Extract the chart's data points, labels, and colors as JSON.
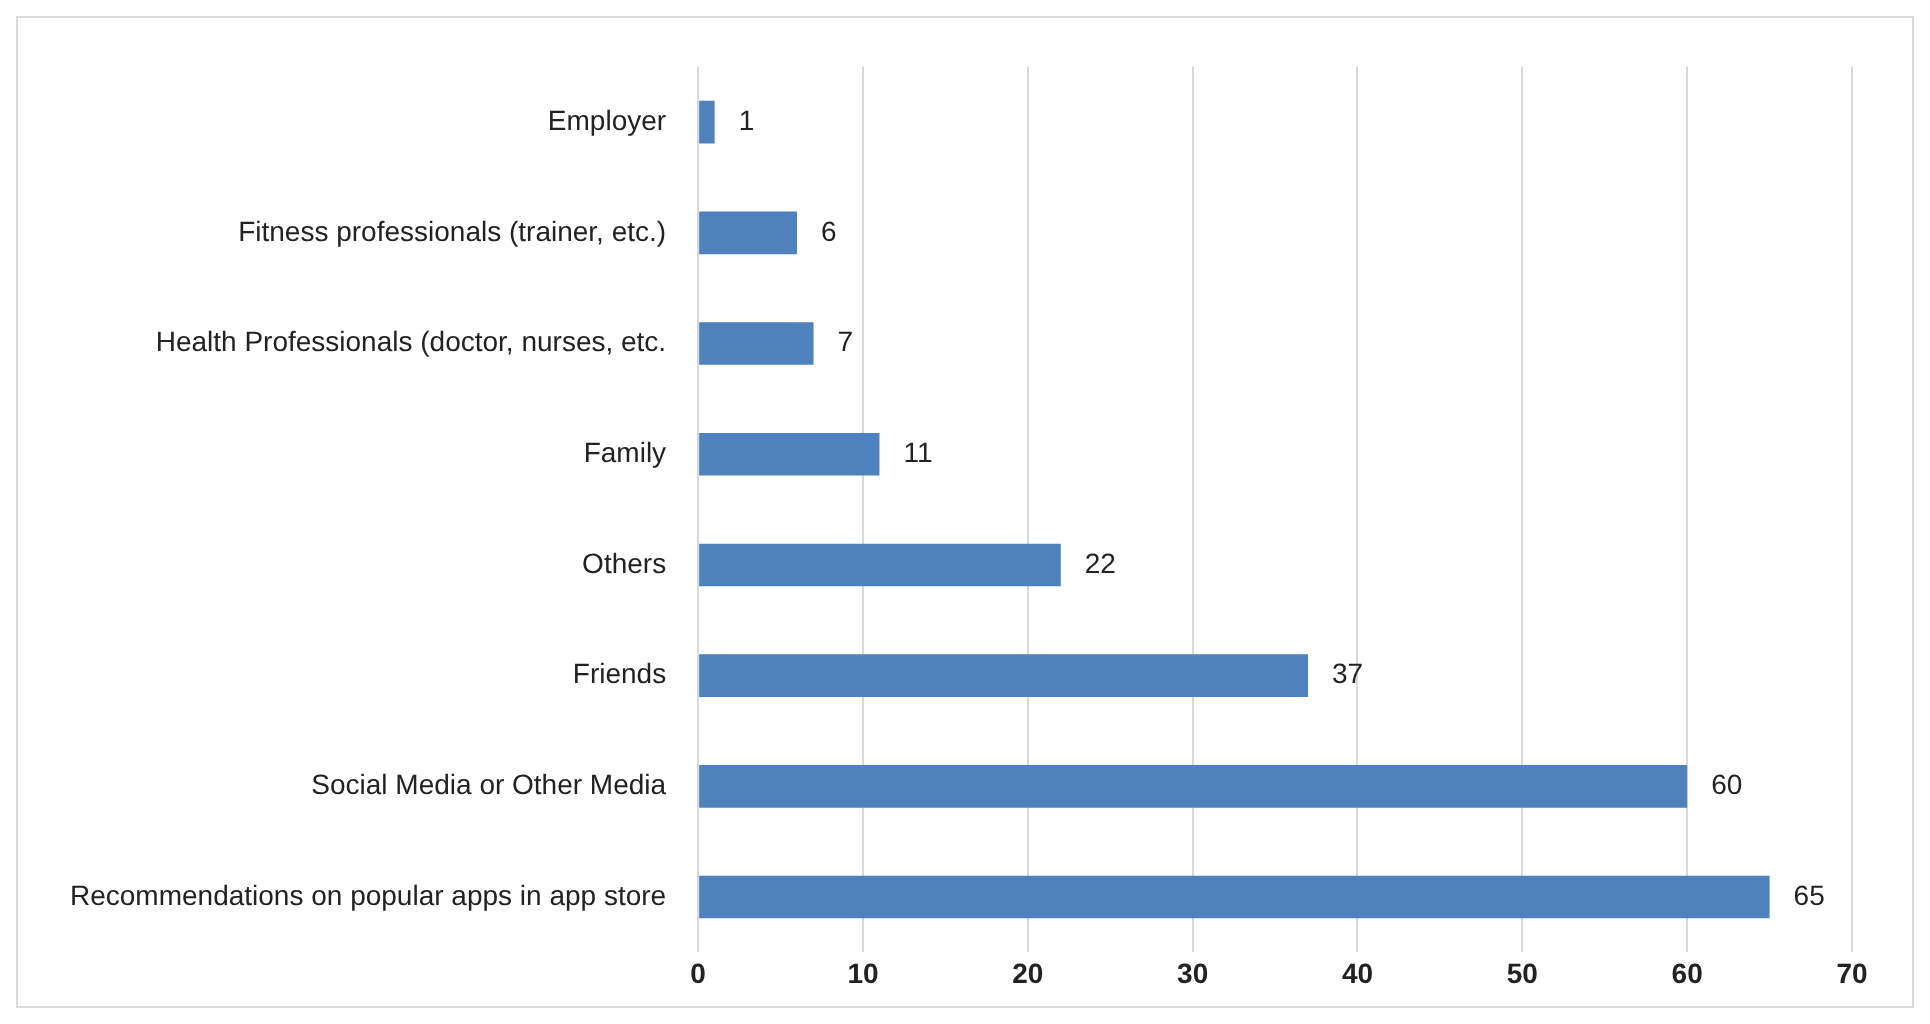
{
  "chart_data": {
    "type": "bar",
    "orientation": "horizontal",
    "categories": [
      "Employer",
      "Fitness professionals (trainer, etc.)",
      "Health Professionals (doctor, nurses, etc.",
      "Family",
      "Others",
      "Friends",
      "Social Media or Other Media",
      "Recommendations on popular apps in app store"
    ],
    "values": [
      1,
      6,
      7,
      11,
      22,
      37,
      60,
      65
    ],
    "color": "#4f81bd",
    "xlim": [
      0,
      70
    ],
    "xticks": [
      0,
      10,
      20,
      30,
      40,
      50,
      60,
      70
    ],
    "grid": "x",
    "legend": false,
    "data_labels": true
  }
}
